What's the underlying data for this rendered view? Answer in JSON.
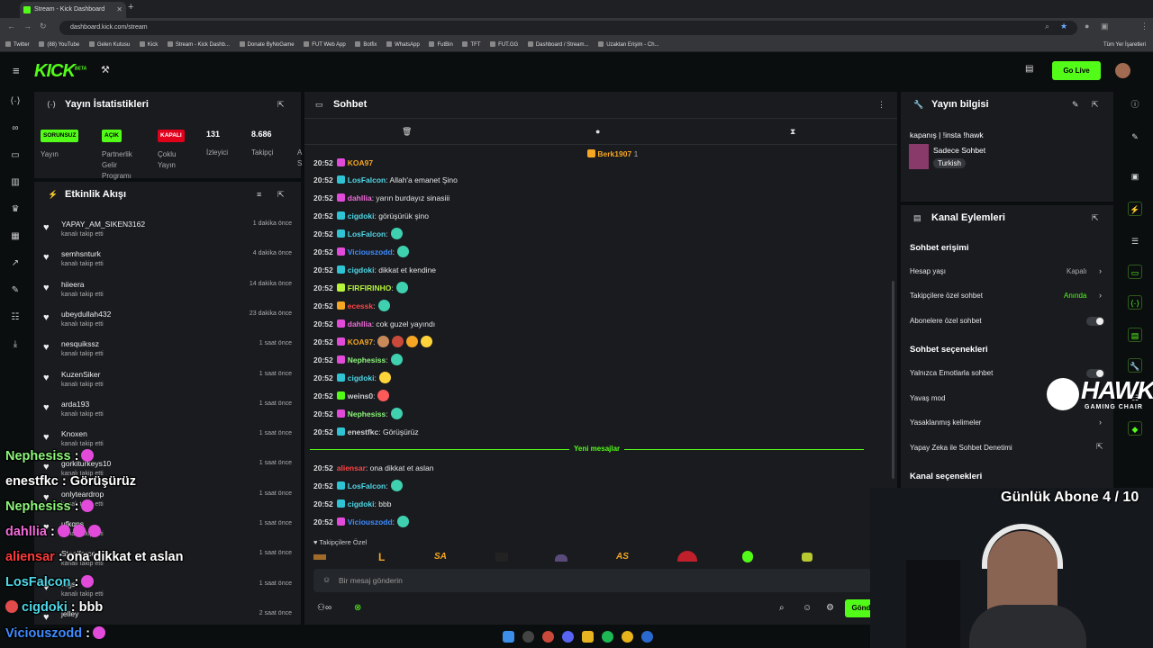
{
  "browser": {
    "tab_title": "Stream - Kick Dashboard",
    "url": "dashboard.kick.com/stream",
    "bookmarks": [
      "Twitter",
      "(88) YouTube",
      "Gelen Kutusu",
      "Kick",
      "Stream - Kick Dashb...",
      "Donate ByNoGame",
      "FUT Web App",
      "Botfix",
      "WhatsApp",
      "FutBin",
      "TFT",
      "FUT.GG",
      "Dashboard / Stream...",
      "Uzaktan Erişim - Ch..."
    ],
    "bookmarks_right": "Tüm Yer İşaretleri"
  },
  "header": {
    "logo": "KICK",
    "logo_beta": "BETA",
    "go_live": "Go Live"
  },
  "stats": {
    "title": "Yayın İstatistikleri",
    "items": [
      {
        "badge": "SORUNSUZ",
        "label": "Yayın"
      },
      {
        "badge": "AÇIK",
        "label": "Partnerlik Gelir Programı"
      },
      {
        "badge": "KAPALI",
        "label": "Çoklu Yayın"
      },
      {
        "value": "131",
        "label": "İzleyici"
      },
      {
        "value": "8.686",
        "label": "Takipçi"
      },
      {
        "label": "A S"
      }
    ]
  },
  "activity": {
    "title": "Etkinlik Akışı",
    "items": [
      {
        "name": "YAPAY_AM_SIKEN3162",
        "action": "kanalı takip etti",
        "time": "1 dakika önce"
      },
      {
        "name": "semhsnturk",
        "action": "kanalı takip etti",
        "time": "4 dakika önce"
      },
      {
        "name": "hiieera",
        "action": "kanalı takip etti",
        "time": "14 dakika önce"
      },
      {
        "name": "ubeydullah432",
        "action": "kanalı takip etti",
        "time": "23 dakika önce"
      },
      {
        "name": "nesquikssz",
        "action": "kanalı takip etti",
        "time": "1 saat önce"
      },
      {
        "name": "KuzenSiker",
        "action": "kanalı takip etti",
        "time": "1 saat önce"
      },
      {
        "name": "arda193",
        "action": "kanalı takip etti",
        "time": "1 saat önce"
      },
      {
        "name": "Knoxen",
        "action": "kanalı takip etti",
        "time": "1 saat önce"
      },
      {
        "name": "gorkiturkeys10",
        "action": "kanalı takip etti",
        "time": "1 saat önce"
      },
      {
        "name": "onlyteardrop",
        "action": "kanalı takip etti",
        "time": "1 saat önce"
      },
      {
        "name": "ufkqns",
        "action": "kanalı takip etti",
        "time": "1 saat önce"
      },
      {
        "name": "Steelforce",
        "action": "kanalı takip etti",
        "time": "1 saat önce"
      },
      {
        "name": "tugs",
        "action": "kanalı takip etti",
        "time": "1 saat önce"
      },
      {
        "name": "jelley",
        "action": "",
        "time": "2 saat önce"
      }
    ]
  },
  "chat": {
    "title": "Sohbet",
    "pinned_user": "Berk1907",
    "pinned_count": "1",
    "new_messages": "Yeni mesajlar",
    "followers_only": "Takipçilere Özel",
    "input_placeholder": "Bir mesaj gönderin",
    "send_label": "Gönd",
    "messages": [
      {
        "time": "20:52",
        "user": "KOA97",
        "color": "#f5a623",
        "badge": "#e24bd9",
        "text": ""
      },
      {
        "time": "20:52",
        "user": "LosFalcon",
        "color": "#4fd8e8",
        "badge": "#2fc4d4",
        "text": ": Allah'a emanet Şino"
      },
      {
        "time": "20:52",
        "user": "dahllia",
        "color": "#f06ad8",
        "badge": "#e24bd9",
        "text": ": yarın burdayız sinasiii"
      },
      {
        "time": "20:52",
        "user": "cigdoki",
        "color": "#4fd8e8",
        "badge": "#2fc4d4",
        "text": ": görüşürük şino"
      },
      {
        "time": "20:52",
        "user": "LosFalcon",
        "color": "#4fd8e8",
        "badge": "#2fc4d4",
        "text": ":"
      },
      {
        "time": "20:52",
        "user": "Viciouszodd",
        "color": "#3f8cff",
        "badge": "#e24bd9",
        "text": ":"
      },
      {
        "time": "20:52",
        "user": "cigdoki",
        "color": "#4fd8e8",
        "badge": "#2fc4d4",
        "text": ": dikkat et kendine"
      },
      {
        "time": "20:52",
        "user": "FIRFIRINHO",
        "color": "#b8f53a",
        "badge": "#b8f53a",
        "text": ":"
      },
      {
        "time": "20:52",
        "user": "ecessk",
        "color": "#ff4444",
        "badge": "#f5a623",
        "text": ":"
      },
      {
        "time": "20:52",
        "user": "dahllia",
        "color": "#f06ad8",
        "badge": "#e24bd9",
        "text": ": cok guzel yayındı"
      },
      {
        "time": "20:52",
        "user": "KOA97",
        "color": "#f5a623",
        "badge": "#e24bd9",
        "text": ":"
      },
      {
        "time": "20:52",
        "user": "Nephesiss",
        "color": "#8df57a",
        "badge": "#e24bd9",
        "text": ":"
      },
      {
        "time": "20:52",
        "user": "cigdoki",
        "color": "#4fd8e8",
        "badge": "#2fc4d4",
        "text": ":"
      },
      {
        "time": "20:52",
        "user": "weins0",
        "color": "#cfcfcf",
        "badge": "#53fc18",
        "text": ":"
      },
      {
        "time": "20:52",
        "user": "Nephesiss",
        "color": "#8df57a",
        "badge": "#e24bd9",
        "text": ":"
      },
      {
        "time": "20:52",
        "user": "enestfkc",
        "color": "#cfcfcf",
        "badge": "#2fc4d4",
        "text": ": Görüşürüz"
      },
      {
        "time": "20:52",
        "user": "aliensar",
        "color": "#ff4444",
        "badge": "",
        "text": ": ona dikkat et aslan"
      },
      {
        "time": "20:52",
        "user": "LosFalcon",
        "color": "#4fd8e8",
        "badge": "#2fc4d4",
        "text": ":"
      },
      {
        "time": "20:52",
        "user": "cigdoki",
        "color": "#4fd8e8",
        "badge": "#2fc4d4",
        "text": ": bbb"
      },
      {
        "time": "20:52",
        "user": "Viciouszodd",
        "color": "#3f8cff",
        "badge": "#e24bd9",
        "text": ":"
      }
    ],
    "emote_bar": [
      "L",
      "SA",
      "AS"
    ]
  },
  "stream_info": {
    "title": "Yayın bilgisi",
    "stream_title": "kapanış | !insta !hawk",
    "category": "Sadece Sohbet",
    "language": "Turkish"
  },
  "channel_actions": {
    "title": "Kanal Eylemleri",
    "chat_access": "Sohbet erişimi",
    "account_age": "Hesap yaşı",
    "account_age_value": "Kapalı",
    "followers_chat": "Takipçilere özel sohbet",
    "followers_chat_value": "Anında",
    "subs_chat": "Abonelere özel sohbet",
    "chat_options": "Sohbet seçenekleri",
    "emote_only": "Yalnızca Emotlarla sohbet",
    "slow_mode": "Yavaş mod",
    "banned_words": "Yasaklanmış kelimeler",
    "ai_moderation": "Yapay Zeka ile Sohbet Denetimi",
    "channel_options": "Kanal seçenekleri"
  },
  "overlay": {
    "sponsor": "HAWK",
    "sponsor_sub": "GAMING CHAIR",
    "sub_goal": "Günlük Abone 4 / 10",
    "messages": [
      {
        "user": "Nephesiss",
        "color": "#8df57a",
        "text": " :"
      },
      {
        "user": "enestfkc",
        "color": "#ffffff",
        "text": " : Görüşürüz"
      },
      {
        "user": "Nephesiss",
        "color": "#8df57a",
        "text": " :"
      },
      {
        "user": "dahllia",
        "color": "#f06ad8",
        "text": " :"
      },
      {
        "user": "aliensar",
        "color": "#ff3b3b",
        "text": " : ona dikkat et aslan"
      },
      {
        "user": "LosFalcon",
        "color": "#4fd8e8",
        "text": " :"
      },
      {
        "user": "cigdoki",
        "color": "#4fd8e8",
        "text": " : bbb"
      },
      {
        "user": "Viciouszodd",
        "color": "#3f8cff",
        "text": " :"
      }
    ]
  }
}
